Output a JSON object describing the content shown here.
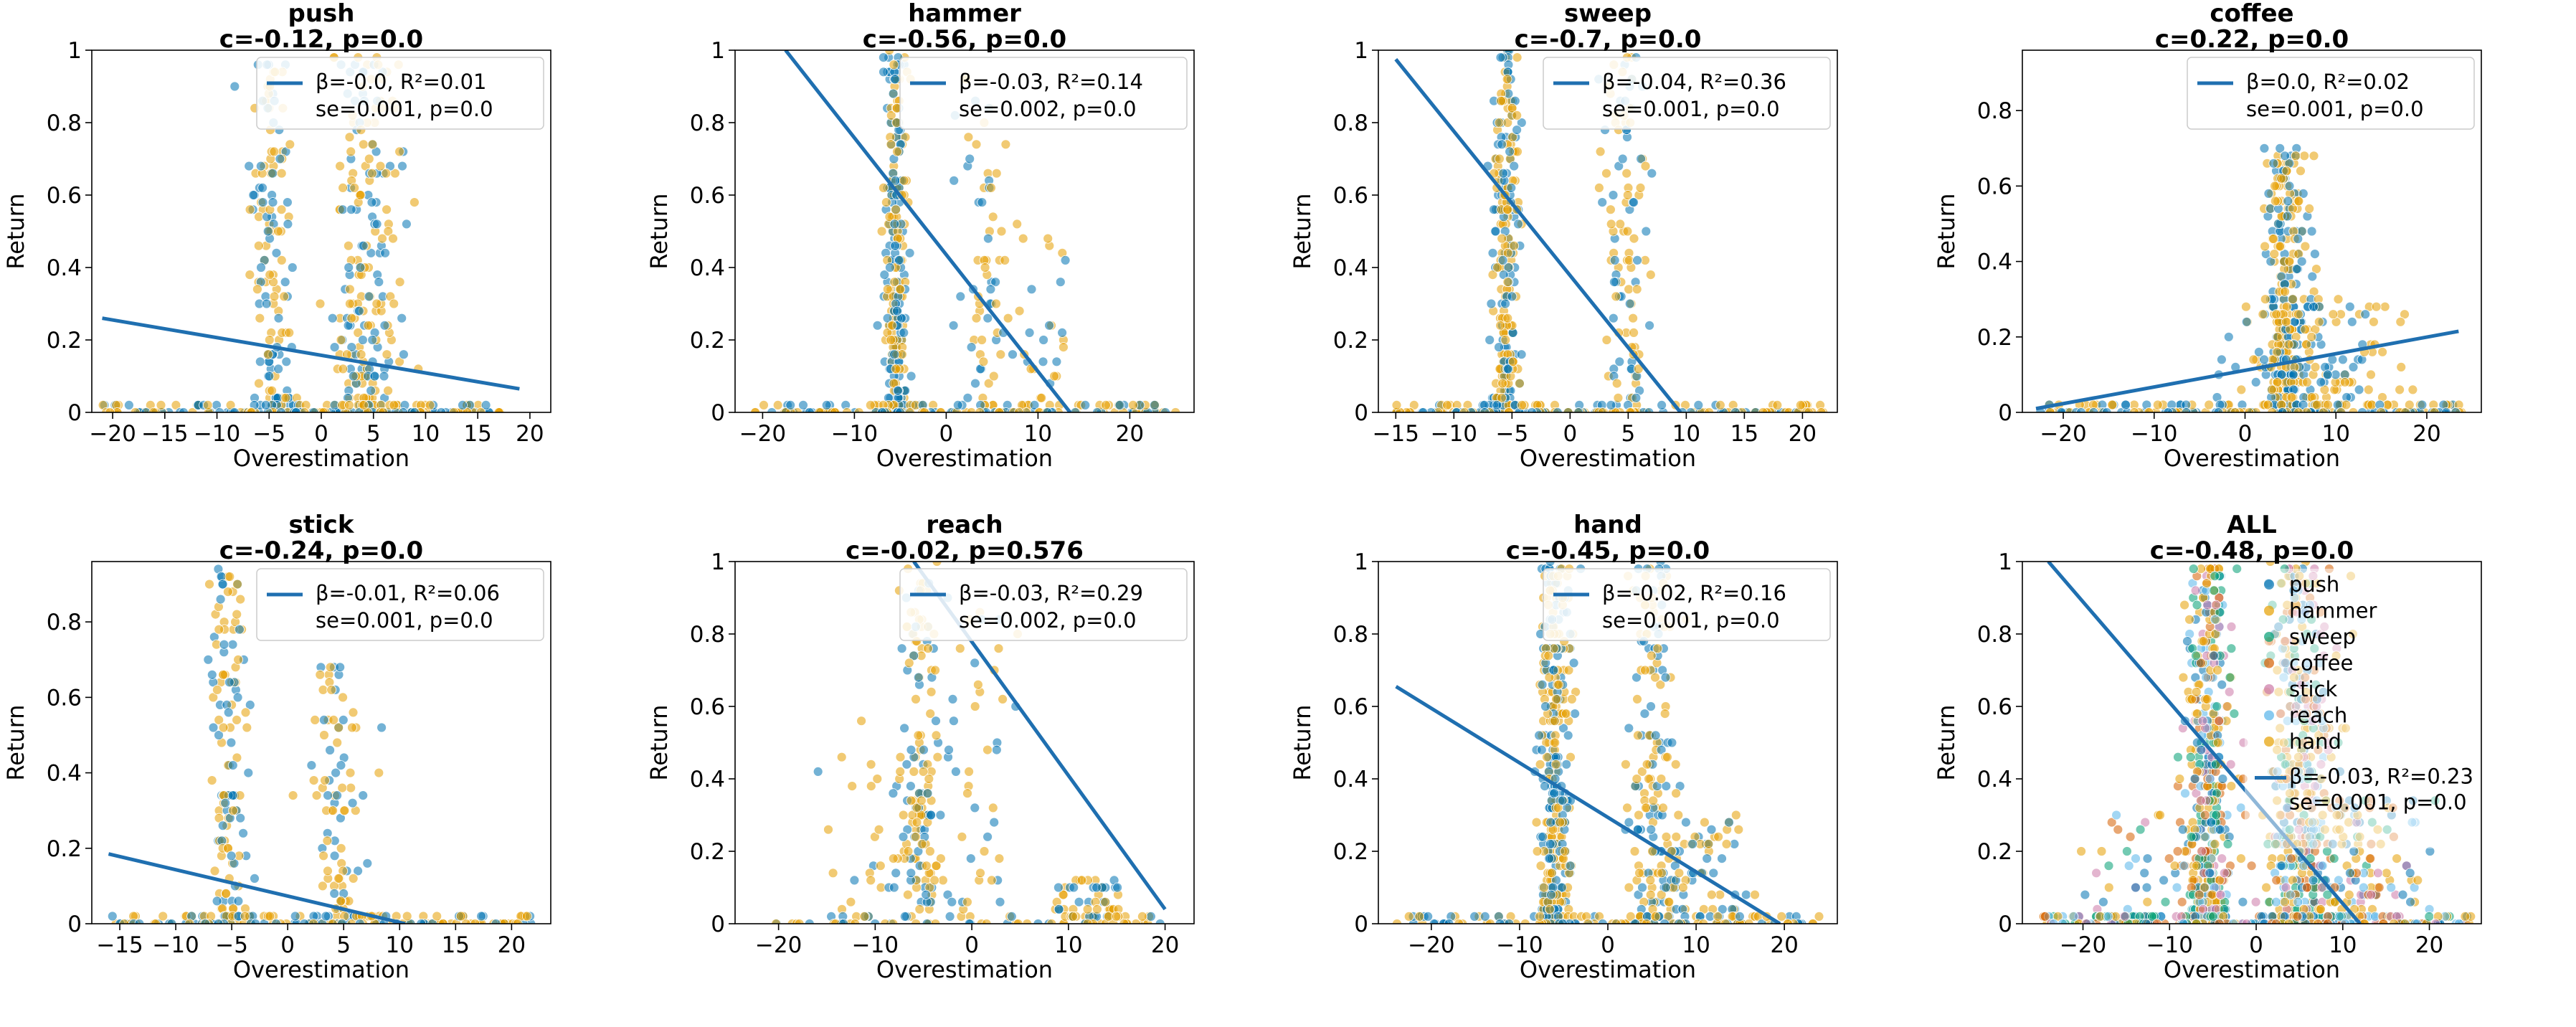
{
  "figure": {
    "colors": {
      "blue": "#0072B2",
      "orange": "#E69F00",
      "green": "#009E73",
      "tan": "#D55E00",
      "pink": "#CC79A7",
      "teal": "#56B4E9",
      "line": "#1f6fb0"
    }
  },
  "chart_data": [
    {
      "type": "scatter",
      "title": "push",
      "subtitle": "c=-0.12, p=0.0",
      "xlabel": "Overestimation",
      "ylabel": "Return",
      "xlim": [
        -22,
        22
      ],
      "ylim": [
        0,
        1.0
      ],
      "xticks": [
        -20,
        -15,
        -10,
        -5,
        0,
        5,
        10,
        15,
        20
      ],
      "yticks": [
        0.0,
        0.2,
        0.4,
        0.6,
        0.8,
        1.0
      ],
      "legend": {
        "position": "top-right",
        "line1": "β=-0.0, R²=0.01",
        "line2": "se=0.001, p=0.0"
      },
      "fit_line": {
        "x": [
          -21,
          19
        ],
        "y": [
          0.26,
          0.065
        ]
      },
      "clusters": [
        {
          "center": -4.8,
          "spread": 1.0,
          "ymax": 0.98,
          "n": 150
        },
        {
          "center": 4.5,
          "spread": 1.6,
          "ymax": 0.98,
          "n": 220
        }
      ],
      "floor": {
        "xmin": -21,
        "xmax": 18,
        "n": 160
      },
      "grid": false
    },
    {
      "type": "scatter",
      "title": "hammer",
      "subtitle": "c=-0.56, p=0.0",
      "xlabel": "Overestimation",
      "ylabel": "Return",
      "xlim": [
        -23,
        27
      ],
      "ylim": [
        0,
        1.0
      ],
      "xticks": [
        -20,
        -10,
        0,
        10,
        20
      ],
      "yticks": [
        0.0,
        0.2,
        0.4,
        0.6,
        0.8,
        1.0
      ],
      "legend": {
        "position": "top-right",
        "line1": "β=-0.03, R²=0.14",
        "line2": "se=0.002, p=0.0"
      },
      "fit_line": {
        "x": [
          -17.5,
          13.5
        ],
        "y": [
          1.0,
          0.0
        ]
      },
      "clusters": [
        {
          "center": -5.5,
          "spread": 0.6,
          "ymax": 1.0,
          "n": 260
        },
        {
          "center": 4.0,
          "spread": 1.5,
          "ymax": 0.98,
          "n": 60
        },
        {
          "center": 10.0,
          "spread": 2.5,
          "ymax": 0.5,
          "n": 35
        }
      ],
      "floor": {
        "xmin": -21,
        "xmax": 25,
        "n": 150
      },
      "grid": false
    },
    {
      "type": "scatter",
      "title": "sweep",
      "subtitle": "c=-0.7, p=0.0",
      "xlabel": "Overestimation",
      "ylabel": "Return",
      "xlim": [
        -16.5,
        23
      ],
      "ylim": [
        0,
        1.0
      ],
      "xticks": [
        -15,
        -10,
        -5,
        0,
        5,
        10,
        15,
        20
      ],
      "yticks": [
        0.0,
        0.2,
        0.4,
        0.6,
        0.8,
        1.0
      ],
      "legend": {
        "position": "top-right",
        "line1": "β=-0.04, R²=0.36",
        "line2": "se=0.001, p=0.0"
      },
      "fit_line": {
        "x": [
          -15,
          9.5
        ],
        "y": [
          0.975,
          0.0
        ]
      },
      "clusters": [
        {
          "center": -5.5,
          "spread": 0.6,
          "ymax": 1.0,
          "n": 240
        },
        {
          "center": 4.8,
          "spread": 1.0,
          "ymax": 0.98,
          "n": 110
        }
      ],
      "floor": {
        "xmin": -15,
        "xmax": 22,
        "n": 150
      },
      "grid": false
    },
    {
      "type": "scatter",
      "title": "coffee",
      "subtitle": "c=0.22, p=0.0",
      "xlabel": "Overestimation",
      "ylabel": "Return",
      "xlim": [
        -24.5,
        26
      ],
      "ylim": [
        0,
        0.96
      ],
      "xticks": [
        -20,
        -10,
        0,
        10,
        20
      ],
      "yticks": [
        0.0,
        0.2,
        0.4,
        0.6,
        0.8
      ],
      "legend": {
        "position": "top-right",
        "line1": "β=0.0, R²=0.02",
        "line2": "se=0.001, p=0.0"
      },
      "fit_line": {
        "x": [
          -23,
          23.5
        ],
        "y": [
          0.01,
          0.215
        ]
      },
      "clusters": [
        {
          "center": 4.5,
          "spread": 1.2,
          "ymax": 0.7,
          "n": 260
        },
        {
          "center": 8.0,
          "spread": 4.5,
          "ymax": 0.3,
          "n": 160
        }
      ],
      "floor": {
        "xmin": -23,
        "xmax": 24,
        "n": 160
      },
      "grid": false
    },
    {
      "type": "scatter",
      "title": "stick",
      "subtitle": "c=-0.24, p=0.0",
      "xlabel": "Overestimation",
      "ylabel": "Return",
      "xlim": [
        -17.5,
        23.5
      ],
      "ylim": [
        0,
        0.96
      ],
      "xticks": [
        -15,
        -10,
        -5,
        0,
        5,
        10,
        15,
        20
      ],
      "yticks": [
        0.0,
        0.2,
        0.4,
        0.6,
        0.8
      ],
      "legend": {
        "position": "top-right",
        "line1": "β=-0.01, R²=0.06",
        "line2": "se=0.001, p=0.0"
      },
      "fit_line": {
        "x": [
          -16,
          10.5
        ],
        "y": [
          0.185,
          0.0
        ]
      },
      "clusters": [
        {
          "center": -5.3,
          "spread": 0.8,
          "ymax": 0.95,
          "n": 130
        },
        {
          "center": 4.5,
          "spread": 1.4,
          "ymax": 0.7,
          "n": 90
        }
      ],
      "floor": {
        "xmin": -16,
        "xmax": 22,
        "n": 160
      },
      "grid": false
    },
    {
      "type": "scatter",
      "title": "reach",
      "subtitle": "c=-0.02, p=0.576",
      "xlabel": "Overestimation",
      "ylabel": "Return",
      "xlim": [
        -24.5,
        23
      ],
      "ylim": [
        0,
        1.0
      ],
      "xticks": [
        -20,
        -10,
        0,
        10,
        20
      ],
      "yticks": [
        0.0,
        0.2,
        0.4,
        0.6,
        0.8,
        1.0
      ],
      "legend": {
        "position": "top-right",
        "line1": "β=-0.03, R²=0.29",
        "line2": "se=0.002, p=0.0"
      },
      "fit_line": {
        "x": [
          -6,
          20
        ],
        "y": [
          1.0,
          0.04
        ]
      },
      "clusters": [
        {
          "center": -5.5,
          "spread": 1.2,
          "ymax": 1.0,
          "n": 140
        },
        {
          "center": -9.0,
          "spread": 3.5,
          "ymax": 0.6,
          "n": 45
        },
        {
          "center": 1.0,
          "spread": 1.8,
          "ymax": 1.0,
          "n": 40
        },
        {
          "center": 12.0,
          "spread": 2.2,
          "ymax": 0.12,
          "n": 70
        }
      ],
      "floor": {
        "xmin": -23,
        "xmax": 20,
        "n": 50
      },
      "grid": false
    },
    {
      "type": "scatter",
      "title": "hand",
      "subtitle": "c=-0.45, p=0.0",
      "xlabel": "Overestimation",
      "ylabel": "Return",
      "xlim": [
        -26,
        26
      ],
      "ylim": [
        0,
        1.0
      ],
      "xticks": [
        -20,
        -10,
        0,
        10,
        20
      ],
      "yticks": [
        0.0,
        0.2,
        0.4,
        0.6,
        0.8,
        1.0
      ],
      "legend": {
        "position": "top-right",
        "line1": "β=-0.02, R²=0.16",
        "line2": "se=0.001, p=0.0"
      },
      "fit_line": {
        "x": [
          -24,
          19.5
        ],
        "y": [
          0.655,
          0.0
        ]
      },
      "clusters": [
        {
          "center": -6.0,
          "spread": 0.9,
          "ymax": 1.0,
          "n": 320
        },
        {
          "center": 5.0,
          "spread": 1.3,
          "ymax": 1.0,
          "n": 160
        },
        {
          "center": 10.0,
          "spread": 3.0,
          "ymax": 0.3,
          "n": 80
        }
      ],
      "floor": {
        "xmin": -25,
        "xmax": 24,
        "n": 120
      },
      "grid": false
    },
    {
      "type": "scatter",
      "title": "ALL",
      "subtitle": "c=-0.48, p=0.0",
      "xlabel": "Overestimation",
      "ylabel": "Return",
      "xlim": [
        -27,
        26
      ],
      "ylim": [
        0,
        1.0
      ],
      "xticks": [
        -20,
        -10,
        0,
        10,
        20
      ],
      "yticks": [
        0.0,
        0.2,
        0.4,
        0.6,
        0.8,
        1.0
      ],
      "legend": {
        "position": "right",
        "series": [
          "push",
          "hammer",
          "sweep",
          "coffee",
          "stick",
          "reach",
          "hand"
        ],
        "line1": "β=-0.03, R²=0.23",
        "line2": "se=0.001, p=0.0"
      },
      "fit_line": {
        "x": [
          -24,
          12
        ],
        "y": [
          1.0,
          0.0
        ]
      },
      "clusters": [
        {
          "center": -5.5,
          "spread": 1.3,
          "ymax": 1.0,
          "n": 420
        },
        {
          "center": 5.0,
          "spread": 2.0,
          "ymax": 1.0,
          "n": 380
        },
        {
          "center": 10.0,
          "spread": 4.5,
          "ymax": 0.35,
          "n": 160
        },
        {
          "center": -12.0,
          "spread": 4.5,
          "ymax": 0.3,
          "n": 60
        }
      ],
      "floor": {
        "xmin": -25,
        "xmax": 25,
        "n": 200
      },
      "grid": false
    }
  ]
}
